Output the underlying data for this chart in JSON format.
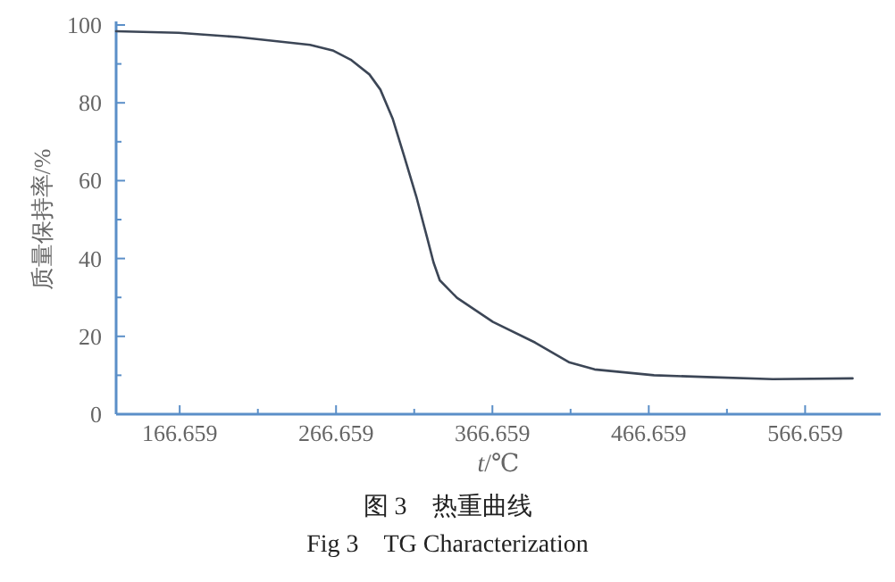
{
  "chart_data": {
    "type": "line",
    "xlabel": "*t*/℃",
    "ylabel": "质量保持率/%",
    "annotations": [
      "图 3　热重曲线",
      "Fig 3　TG Characterization"
    ],
    "x": [
      126,
      166,
      204,
      250,
      265,
      276,
      288,
      295,
      303,
      310,
      318,
      325,
      329,
      333,
      344,
      367,
      394,
      416,
      432,
      470,
      508,
      546,
      597
    ],
    "values": [
      98.4,
      98.0,
      96.9,
      94.9,
      93.4,
      91.1,
      87.3,
      83.4,
      75.8,
      66.6,
      55.9,
      45.2,
      39.0,
      34.4,
      29.9,
      23.7,
      18.4,
      13.3,
      11.5,
      10.0,
      9.5,
      9.0,
      9.2
    ],
    "color": "#3c4656",
    "xlim": [
      126,
      615
    ],
    "ylim": [
      0,
      100
    ],
    "xticks": [
      166.659,
      {
        "value": 216.659,
        "label": null
      },
      266.659,
      {
        "value": 316.659,
        "label": null
      },
      366.659,
      {
        "value": 416.659,
        "label": null
      },
      466.659,
      {
        "value": 516.659,
        "label": null
      },
      566.659
    ],
    "yticks": [
      0,
      {
        "value": 10,
        "label": null
      },
      20,
      {
        "value": 30,
        "label": null
      },
      40,
      {
        "value": 50,
        "label": null
      },
      60,
      {
        "value": 70,
        "label": null
      },
      80,
      {
        "value": 90,
        "label": null
      },
      100
    ]
  }
}
